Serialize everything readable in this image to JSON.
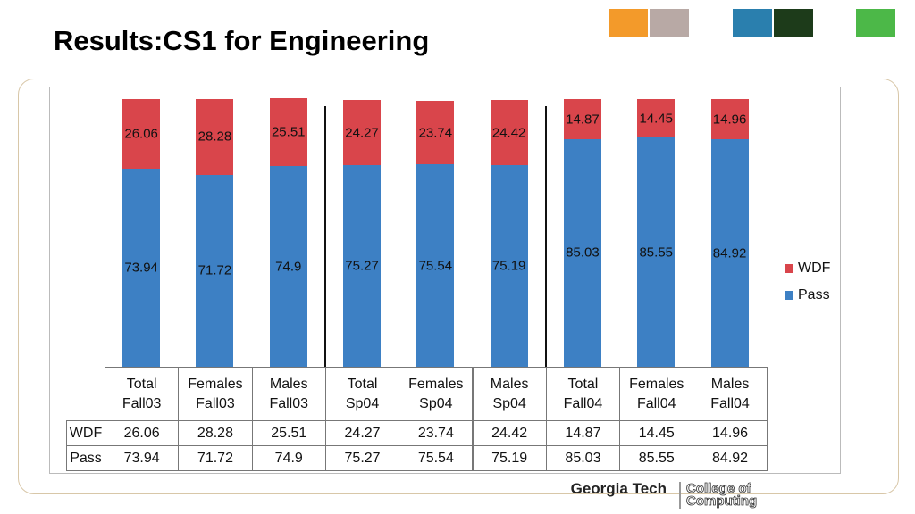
{
  "slide_title": "Results:CS1 for Engineering",
  "logo": {
    "left": "Georgia Tech",
    "right": "College of Computing"
  },
  "chart_data": {
    "type": "bar",
    "stacked": true,
    "categories": [
      "Total Fall03",
      "Females Fall03",
      "Males Fall03",
      "Total Sp04",
      "Females Sp04",
      "Males Sp04",
      "Total Fall04",
      "Females Fall04",
      "Males Fall04"
    ],
    "series": [
      {
        "name": "WDF",
        "color": "#d9454b",
        "values": [
          26.06,
          28.28,
          25.51,
          24.27,
          23.74,
          24.42,
          14.87,
          14.45,
          14.96
        ]
      },
      {
        "name": "Pass",
        "color": "#3d80c4",
        "values": [
          73.94,
          71.72,
          74.9,
          75.27,
          75.54,
          75.19,
          85.03,
          85.55,
          84.92
        ]
      }
    ],
    "ylim": [
      0,
      100
    ],
    "legend": "right"
  }
}
